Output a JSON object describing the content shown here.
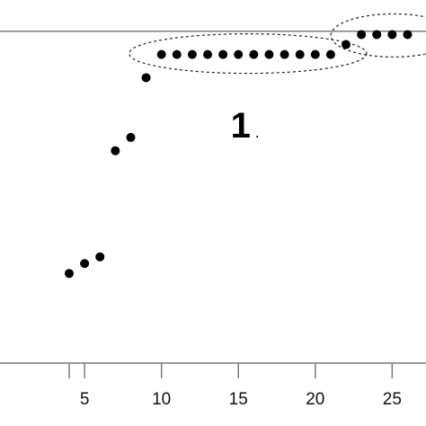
{
  "chart_data": {
    "type": "scatter",
    "title": "",
    "xlabel": "",
    "ylabel": "",
    "x_ticks": [
      "5",
      "10",
      "15",
      "20",
      "25"
    ],
    "xlim": [
      -0.5,
      27.2
    ],
    "ylim": [
      0,
      1.04
    ],
    "reference_line_y": 1.0,
    "grid": false,
    "points": [
      {
        "x": 4,
        "y": 0.27
      },
      {
        "x": 5,
        "y": 0.3
      },
      {
        "x": 6,
        "y": 0.32
      },
      {
        "x": 7,
        "y": 0.64
      },
      {
        "x": 8,
        "y": 0.68
      },
      {
        "x": 9,
        "y": 0.86
      },
      {
        "x": 10,
        "y": 0.93
      },
      {
        "x": 11,
        "y": 0.93
      },
      {
        "x": 12,
        "y": 0.93
      },
      {
        "x": 13,
        "y": 0.93
      },
      {
        "x": 14,
        "y": 0.93
      },
      {
        "x": 15,
        "y": 0.93
      },
      {
        "x": 16,
        "y": 0.93
      },
      {
        "x": 17,
        "y": 0.93
      },
      {
        "x": 18,
        "y": 0.93
      },
      {
        "x": 19,
        "y": 0.93
      },
      {
        "x": 20,
        "y": 0.93
      },
      {
        "x": 21,
        "y": 0.93
      },
      {
        "x": 22,
        "y": 0.96
      },
      {
        "x": 23,
        "y": 0.99
      },
      {
        "x": 24,
        "y": 0.99
      },
      {
        "x": 25,
        "y": 0.99
      },
      {
        "x": 26,
        "y": 0.99
      }
    ],
    "annotations": [
      {
        "label": "1",
        "suffix": ".",
        "x_from": 10,
        "x_to": 21,
        "label_x": 15.5
      }
    ],
    "color": "#000000"
  }
}
